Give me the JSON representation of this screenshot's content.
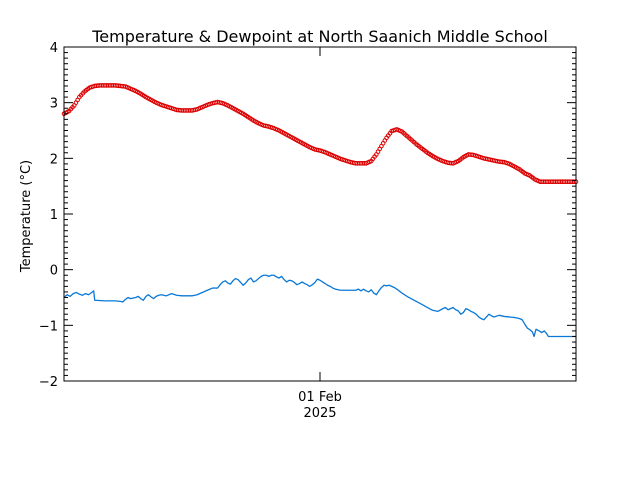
{
  "chart_data": {
    "type": "line",
    "title": "Temperature & Dewpoint at North Saanich Middle School",
    "xlabel": "",
    "ylabel": "Temperature (°C)",
    "ylim": [
      -2,
      4
    ],
    "yticks": [
      -2,
      -1,
      0,
      1,
      2,
      3,
      4
    ],
    "xlim": [
      0,
      1
    ],
    "xticks": [
      {
        "x": 0.5,
        "label": "01 Feb",
        "sublabel": "2025"
      }
    ],
    "grid": false,
    "legend": "none",
    "series": [
      {
        "color": "#dd0000",
        "marker": "circle",
        "points": [
          [
            0.0,
            2.8
          ],
          [
            0.01,
            2.85
          ],
          [
            0.02,
            2.95
          ],
          [
            0.03,
            3.1
          ],
          [
            0.04,
            3.2
          ],
          [
            0.05,
            3.27
          ],
          [
            0.06,
            3.3
          ],
          [
            0.07,
            3.31
          ],
          [
            0.08,
            3.31
          ],
          [
            0.09,
            3.31
          ],
          [
            0.1,
            3.31
          ],
          [
            0.11,
            3.3
          ],
          [
            0.12,
            3.29
          ],
          [
            0.13,
            3.25
          ],
          [
            0.14,
            3.21
          ],
          [
            0.15,
            3.16
          ],
          [
            0.16,
            3.1
          ],
          [
            0.17,
            3.05
          ],
          [
            0.18,
            3.0
          ],
          [
            0.19,
            2.96
          ],
          [
            0.2,
            2.93
          ],
          [
            0.21,
            2.9
          ],
          [
            0.22,
            2.87
          ],
          [
            0.23,
            2.86
          ],
          [
            0.24,
            2.86
          ],
          [
            0.25,
            2.86
          ],
          [
            0.26,
            2.88
          ],
          [
            0.27,
            2.92
          ],
          [
            0.28,
            2.96
          ],
          [
            0.29,
            2.99
          ],
          [
            0.3,
            3.01
          ],
          [
            0.31,
            2.99
          ],
          [
            0.32,
            2.95
          ],
          [
            0.33,
            2.9
          ],
          [
            0.34,
            2.85
          ],
          [
            0.35,
            2.8
          ],
          [
            0.36,
            2.74
          ],
          [
            0.37,
            2.68
          ],
          [
            0.38,
            2.63
          ],
          [
            0.39,
            2.59
          ],
          [
            0.4,
            2.57
          ],
          [
            0.41,
            2.54
          ],
          [
            0.42,
            2.5
          ],
          [
            0.43,
            2.45
          ],
          [
            0.44,
            2.4
          ],
          [
            0.45,
            2.35
          ],
          [
            0.46,
            2.3
          ],
          [
            0.47,
            2.25
          ],
          [
            0.48,
            2.2
          ],
          [
            0.49,
            2.16
          ],
          [
            0.5,
            2.14
          ],
          [
            0.51,
            2.11
          ],
          [
            0.52,
            2.07
          ],
          [
            0.53,
            2.03
          ],
          [
            0.54,
            1.99
          ],
          [
            0.55,
            1.96
          ],
          [
            0.56,
            1.93
          ],
          [
            0.57,
            1.91
          ],
          [
            0.58,
            1.91
          ],
          [
            0.59,
            1.91
          ],
          [
            0.6,
            1.95
          ],
          [
            0.61,
            2.07
          ],
          [
            0.62,
            2.22
          ],
          [
            0.63,
            2.37
          ],
          [
            0.64,
            2.49
          ],
          [
            0.65,
            2.52
          ],
          [
            0.66,
            2.48
          ],
          [
            0.67,
            2.4
          ],
          [
            0.68,
            2.32
          ],
          [
            0.69,
            2.24
          ],
          [
            0.7,
            2.17
          ],
          [
            0.71,
            2.1
          ],
          [
            0.72,
            2.04
          ],
          [
            0.73,
            1.99
          ],
          [
            0.74,
            1.95
          ],
          [
            0.75,
            1.92
          ],
          [
            0.76,
            1.91
          ],
          [
            0.77,
            1.95
          ],
          [
            0.78,
            2.02
          ],
          [
            0.79,
            2.07
          ],
          [
            0.8,
            2.06
          ],
          [
            0.81,
            2.03
          ],
          [
            0.82,
            2.0
          ],
          [
            0.83,
            1.98
          ],
          [
            0.84,
            1.96
          ],
          [
            0.85,
            1.94
          ],
          [
            0.86,
            1.93
          ],
          [
            0.87,
            1.9
          ],
          [
            0.88,
            1.85
          ],
          [
            0.89,
            1.8
          ],
          [
            0.9,
            1.73
          ],
          [
            0.91,
            1.69
          ],
          [
            0.92,
            1.62
          ],
          [
            0.93,
            1.58
          ],
          [
            0.94,
            1.58
          ],
          [
            0.95,
            1.58
          ],
          [
            0.96,
            1.58
          ],
          [
            0.97,
            1.58
          ],
          [
            0.98,
            1.58
          ],
          [
            0.99,
            1.58
          ],
          [
            1.0,
            1.58
          ]
        ]
      },
      {
        "color": "#0a78d6",
        "marker": "none",
        "points": [
          [
            0.0,
            -0.5
          ],
          [
            0.006,
            -0.45
          ],
          [
            0.012,
            -0.48
          ],
          [
            0.018,
            -0.43
          ],
          [
            0.024,
            -0.41
          ],
          [
            0.03,
            -0.44
          ],
          [
            0.036,
            -0.46
          ],
          [
            0.042,
            -0.43
          ],
          [
            0.048,
            -0.45
          ],
          [
            0.054,
            -0.41
          ],
          [
            0.058,
            -0.38
          ],
          [
            0.06,
            -0.55
          ],
          [
            0.08,
            -0.56
          ],
          [
            0.1,
            -0.56
          ],
          [
            0.11,
            -0.57
          ],
          [
            0.115,
            -0.58
          ],
          [
            0.118,
            -0.55
          ],
          [
            0.125,
            -0.5
          ],
          [
            0.13,
            -0.52
          ],
          [
            0.14,
            -0.5
          ],
          [
            0.145,
            -0.48
          ],
          [
            0.15,
            -0.52
          ],
          [
            0.155,
            -0.55
          ],
          [
            0.16,
            -0.48
          ],
          [
            0.165,
            -0.45
          ],
          [
            0.17,
            -0.49
          ],
          [
            0.175,
            -0.52
          ],
          [
            0.18,
            -0.48
          ],
          [
            0.185,
            -0.46
          ],
          [
            0.19,
            -0.45
          ],
          [
            0.2,
            -0.47
          ],
          [
            0.21,
            -0.43
          ],
          [
            0.22,
            -0.46
          ],
          [
            0.23,
            -0.47
          ],
          [
            0.24,
            -0.47
          ],
          [
            0.25,
            -0.47
          ],
          [
            0.26,
            -0.45
          ],
          [
            0.27,
            -0.41
          ],
          [
            0.28,
            -0.37
          ],
          [
            0.29,
            -0.33
          ],
          [
            0.3,
            -0.33
          ],
          [
            0.305,
            -0.27
          ],
          [
            0.31,
            -0.22
          ],
          [
            0.315,
            -0.2
          ],
          [
            0.32,
            -0.24
          ],
          [
            0.325,
            -0.26
          ],
          [
            0.33,
            -0.2
          ],
          [
            0.335,
            -0.16
          ],
          [
            0.34,
            -0.18
          ],
          [
            0.345,
            -0.23
          ],
          [
            0.35,
            -0.28
          ],
          [
            0.355,
            -0.24
          ],
          [
            0.36,
            -0.18
          ],
          [
            0.365,
            -0.15
          ],
          [
            0.37,
            -0.22
          ],
          [
            0.375,
            -0.2
          ],
          [
            0.38,
            -0.16
          ],
          [
            0.385,
            -0.12
          ],
          [
            0.39,
            -0.1
          ],
          [
            0.395,
            -0.1
          ],
          [
            0.4,
            -0.12
          ],
          [
            0.405,
            -0.1
          ],
          [
            0.41,
            -0.1
          ],
          [
            0.415,
            -0.13
          ],
          [
            0.42,
            -0.15
          ],
          [
            0.425,
            -0.12
          ],
          [
            0.43,
            -0.18
          ],
          [
            0.435,
            -0.22
          ],
          [
            0.44,
            -0.19
          ],
          [
            0.445,
            -0.2
          ],
          [
            0.45,
            -0.23
          ],
          [
            0.455,
            -0.27
          ],
          [
            0.46,
            -0.25
          ],
          [
            0.465,
            -0.22
          ],
          [
            0.47,
            -0.25
          ],
          [
            0.475,
            -0.27
          ],
          [
            0.48,
            -0.3
          ],
          [
            0.485,
            -0.27
          ],
          [
            0.49,
            -0.23
          ],
          [
            0.495,
            -0.17
          ],
          [
            0.5,
            -0.19
          ],
          [
            0.505,
            -0.22
          ],
          [
            0.51,
            -0.25
          ],
          [
            0.515,
            -0.28
          ],
          [
            0.52,
            -0.3
          ],
          [
            0.525,
            -0.33
          ],
          [
            0.53,
            -0.35
          ],
          [
            0.54,
            -0.37
          ],
          [
            0.55,
            -0.37
          ],
          [
            0.56,
            -0.37
          ],
          [
            0.57,
            -0.37
          ],
          [
            0.575,
            -0.35
          ],
          [
            0.58,
            -0.38
          ],
          [
            0.585,
            -0.35
          ],
          [
            0.59,
            -0.38
          ],
          [
            0.595,
            -0.4
          ],
          [
            0.6,
            -0.36
          ],
          [
            0.605,
            -0.42
          ],
          [
            0.61,
            -0.45
          ],
          [
            0.615,
            -0.38
          ],
          [
            0.62,
            -0.32
          ],
          [
            0.625,
            -0.28
          ],
          [
            0.63,
            -0.29
          ],
          [
            0.635,
            -0.28
          ],
          [
            0.64,
            -0.3
          ],
          [
            0.645,
            -0.32
          ],
          [
            0.65,
            -0.35
          ],
          [
            0.66,
            -0.42
          ],
          [
            0.67,
            -0.48
          ],
          [
            0.68,
            -0.53
          ],
          [
            0.69,
            -0.58
          ],
          [
            0.7,
            -0.63
          ],
          [
            0.71,
            -0.68
          ],
          [
            0.72,
            -0.73
          ],
          [
            0.73,
            -0.75
          ],
          [
            0.74,
            -0.7
          ],
          [
            0.745,
            -0.68
          ],
          [
            0.75,
            -0.72
          ],
          [
            0.755,
            -0.7
          ],
          [
            0.76,
            -0.68
          ],
          [
            0.765,
            -0.72
          ],
          [
            0.77,
            -0.74
          ],
          [
            0.775,
            -0.8
          ],
          [
            0.78,
            -0.77
          ],
          [
            0.785,
            -0.7
          ],
          [
            0.79,
            -0.72
          ],
          [
            0.795,
            -0.75
          ],
          [
            0.8,
            -0.77
          ],
          [
            0.805,
            -0.8
          ],
          [
            0.81,
            -0.85
          ],
          [
            0.815,
            -0.88
          ],
          [
            0.82,
            -0.9
          ],
          [
            0.825,
            -0.85
          ],
          [
            0.83,
            -0.8
          ],
          [
            0.835,
            -0.83
          ],
          [
            0.84,
            -0.85
          ],
          [
            0.85,
            -0.82
          ],
          [
            0.86,
            -0.84
          ],
          [
            0.87,
            -0.85
          ],
          [
            0.88,
            -0.86
          ],
          [
            0.89,
            -0.88
          ],
          [
            0.895,
            -0.9
          ],
          [
            0.9,
            -0.98
          ],
          [
            0.905,
            -1.05
          ],
          [
            0.91,
            -1.08
          ],
          [
            0.915,
            -1.12
          ],
          [
            0.918,
            -1.2
          ],
          [
            0.922,
            -1.07
          ],
          [
            0.928,
            -1.1
          ],
          [
            0.933,
            -1.13
          ],
          [
            0.938,
            -1.1
          ],
          [
            0.942,
            -1.14
          ],
          [
            0.946,
            -1.2
          ],
          [
            0.96,
            -1.2
          ],
          [
            0.98,
            -1.2
          ],
          [
            1.0,
            -1.2
          ]
        ]
      }
    ]
  }
}
